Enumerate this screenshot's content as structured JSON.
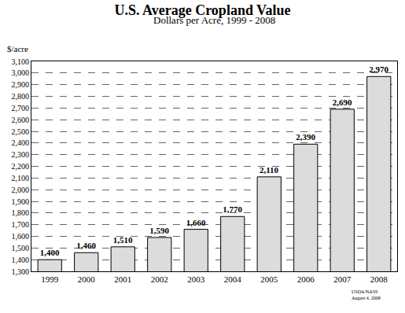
{
  "chart_data": {
    "type": "bar",
    "title": "U.S. Average Cropland Value",
    "subtitle": "Dollars per Acre, 1999 - 2008",
    "y_label": "$/acre",
    "annotations": [
      "USDA/NASS",
      "August 4, 2008"
    ],
    "categories": [
      "1999",
      "2000",
      "2001",
      "2002",
      "2003",
      "2004",
      "2005",
      "2006",
      "2007",
      "2008"
    ],
    "values": [
      1400,
      1460,
      1510,
      1590,
      1660,
      1770,
      2110,
      2390,
      2690,
      2970
    ],
    "value_labels": [
      "1,400",
      "1,460",
      "1,510",
      "1,590",
      "1,660",
      "1,770",
      "2,110",
      "2,390",
      "2,690",
      "2,970"
    ],
    "color": "#dcdcdc",
    "ylim": [
      1300,
      3100
    ],
    "yticks": [
      {
        "value": 1300,
        "label": "1,300"
      },
      {
        "value": 1400,
        "label": "1,400"
      },
      {
        "value": 1500,
        "label": "1,500"
      },
      {
        "value": 1600,
        "label": "1,600"
      },
      {
        "value": 1700,
        "label": "1,700"
      },
      {
        "value": 1800,
        "label": "1,800"
      },
      {
        "value": 1900,
        "label": "1,900"
      },
      {
        "value": 2000,
        "label": "2,000"
      },
      {
        "value": 2100,
        "label": "2,100"
      },
      {
        "value": 2200,
        "label": "2,200"
      },
      {
        "value": 2300,
        "label": "2,300"
      },
      {
        "value": 2400,
        "label": "2,400"
      },
      {
        "value": 2500,
        "label": "2,500"
      },
      {
        "value": 2600,
        "label": "2,600"
      },
      {
        "value": 2700,
        "label": "2,700"
      },
      {
        "value": 2800,
        "label": "2,800"
      },
      {
        "value": 2900,
        "label": "2,900"
      },
      {
        "value": 3000,
        "label": "3,000"
      },
      {
        "value": 3100,
        "label": "3,100"
      }
    ],
    "grid": true,
    "data_labels": true
  }
}
